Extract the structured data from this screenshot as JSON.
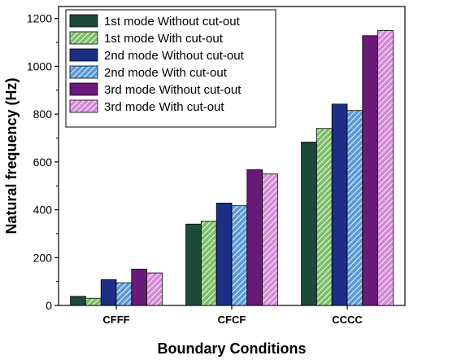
{
  "chart_data": {
    "type": "bar",
    "categories": [
      "CFFF",
      "CFCF",
      "CCCC"
    ],
    "series": [
      {
        "name": "1st mode Without cut-out",
        "values": [
          38,
          340,
          683
        ],
        "color": "#1d4a3a",
        "hatched": false
      },
      {
        "name": "1st mode With cut-out",
        "values": [
          30,
          352,
          740
        ],
        "color": "#7fbf6a",
        "hatched": true
      },
      {
        "name": "2nd mode Without cut-out",
        "values": [
          108,
          428,
          842
        ],
        "color": "#1c2f86",
        "hatched": false
      },
      {
        "name": "2nd mode With cut-out",
        "values": [
          95,
          417,
          815
        ],
        "color": "#5b9bd8",
        "hatched": true
      },
      {
        "name": "3rd mode Without cut-out",
        "values": [
          152,
          568,
          1128
        ],
        "color": "#6a1a78",
        "hatched": false
      },
      {
        "name": "3rd mode With cut-out",
        "values": [
          136,
          550,
          1150
        ],
        "color": "#d48ad8",
        "hatched": true
      }
    ],
    "xlabel": "Boundary Conditions",
    "ylabel": "Natural frequency (Hz)",
    "ylim": [
      0,
      1250
    ],
    "yticks": [
      0,
      200,
      400,
      600,
      800,
      1000,
      1200
    ],
    "grid": false,
    "legend_position": "top-left"
  }
}
